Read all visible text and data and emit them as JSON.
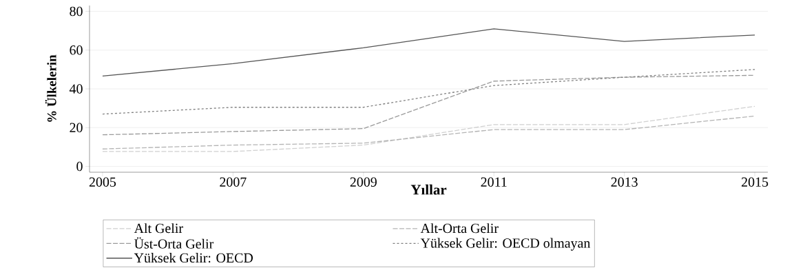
{
  "chart_data": {
    "type": "line",
    "xlabel": "Yıllar",
    "ylabel": "% Ülkelerin",
    "x": [
      2005,
      2007,
      2009,
      2011,
      2013,
      2015
    ],
    "xlim": [
      2004.8,
      2015.2
    ],
    "ylim": [
      -3,
      83
    ],
    "xticks": [
      2005,
      2007,
      2009,
      2011,
      2013,
      2015
    ],
    "yticks": [
      0,
      20,
      40,
      60,
      80
    ],
    "grid": "y",
    "legend": "bottom",
    "marker": "none",
    "series": [
      {
        "name": "Alt Gelir",
        "color": "#d0d0d0",
        "line_style": "dashed",
        "values": [
          7.7,
          7.7,
          11,
          21.6,
          21.6,
          31
        ]
      },
      {
        "name": "Alt-Orta Gelir",
        "color": "#b4b4b4",
        "line_style": "dashed",
        "values": [
          9,
          11,
          12,
          19,
          19,
          26
        ]
      },
      {
        "name": "Üst-Orta Gelir",
        "color": "#9a9a9a",
        "line_style": "dashed",
        "values": [
          16.3,
          18,
          19.5,
          44,
          46,
          47
        ]
      },
      {
        "name": "Yüksek Gelir: OECD olmayan",
        "color": "#808080",
        "line_style": "dotted",
        "values": [
          27,
          30.5,
          30.5,
          41.7,
          46,
          50
        ]
      },
      {
        "name": "Yüksek Gelir: OECD",
        "color": "#555555",
        "line_style": "solid",
        "values": [
          46.6,
          53,
          61.2,
          71,
          64.5,
          67.8
        ]
      }
    ]
  }
}
